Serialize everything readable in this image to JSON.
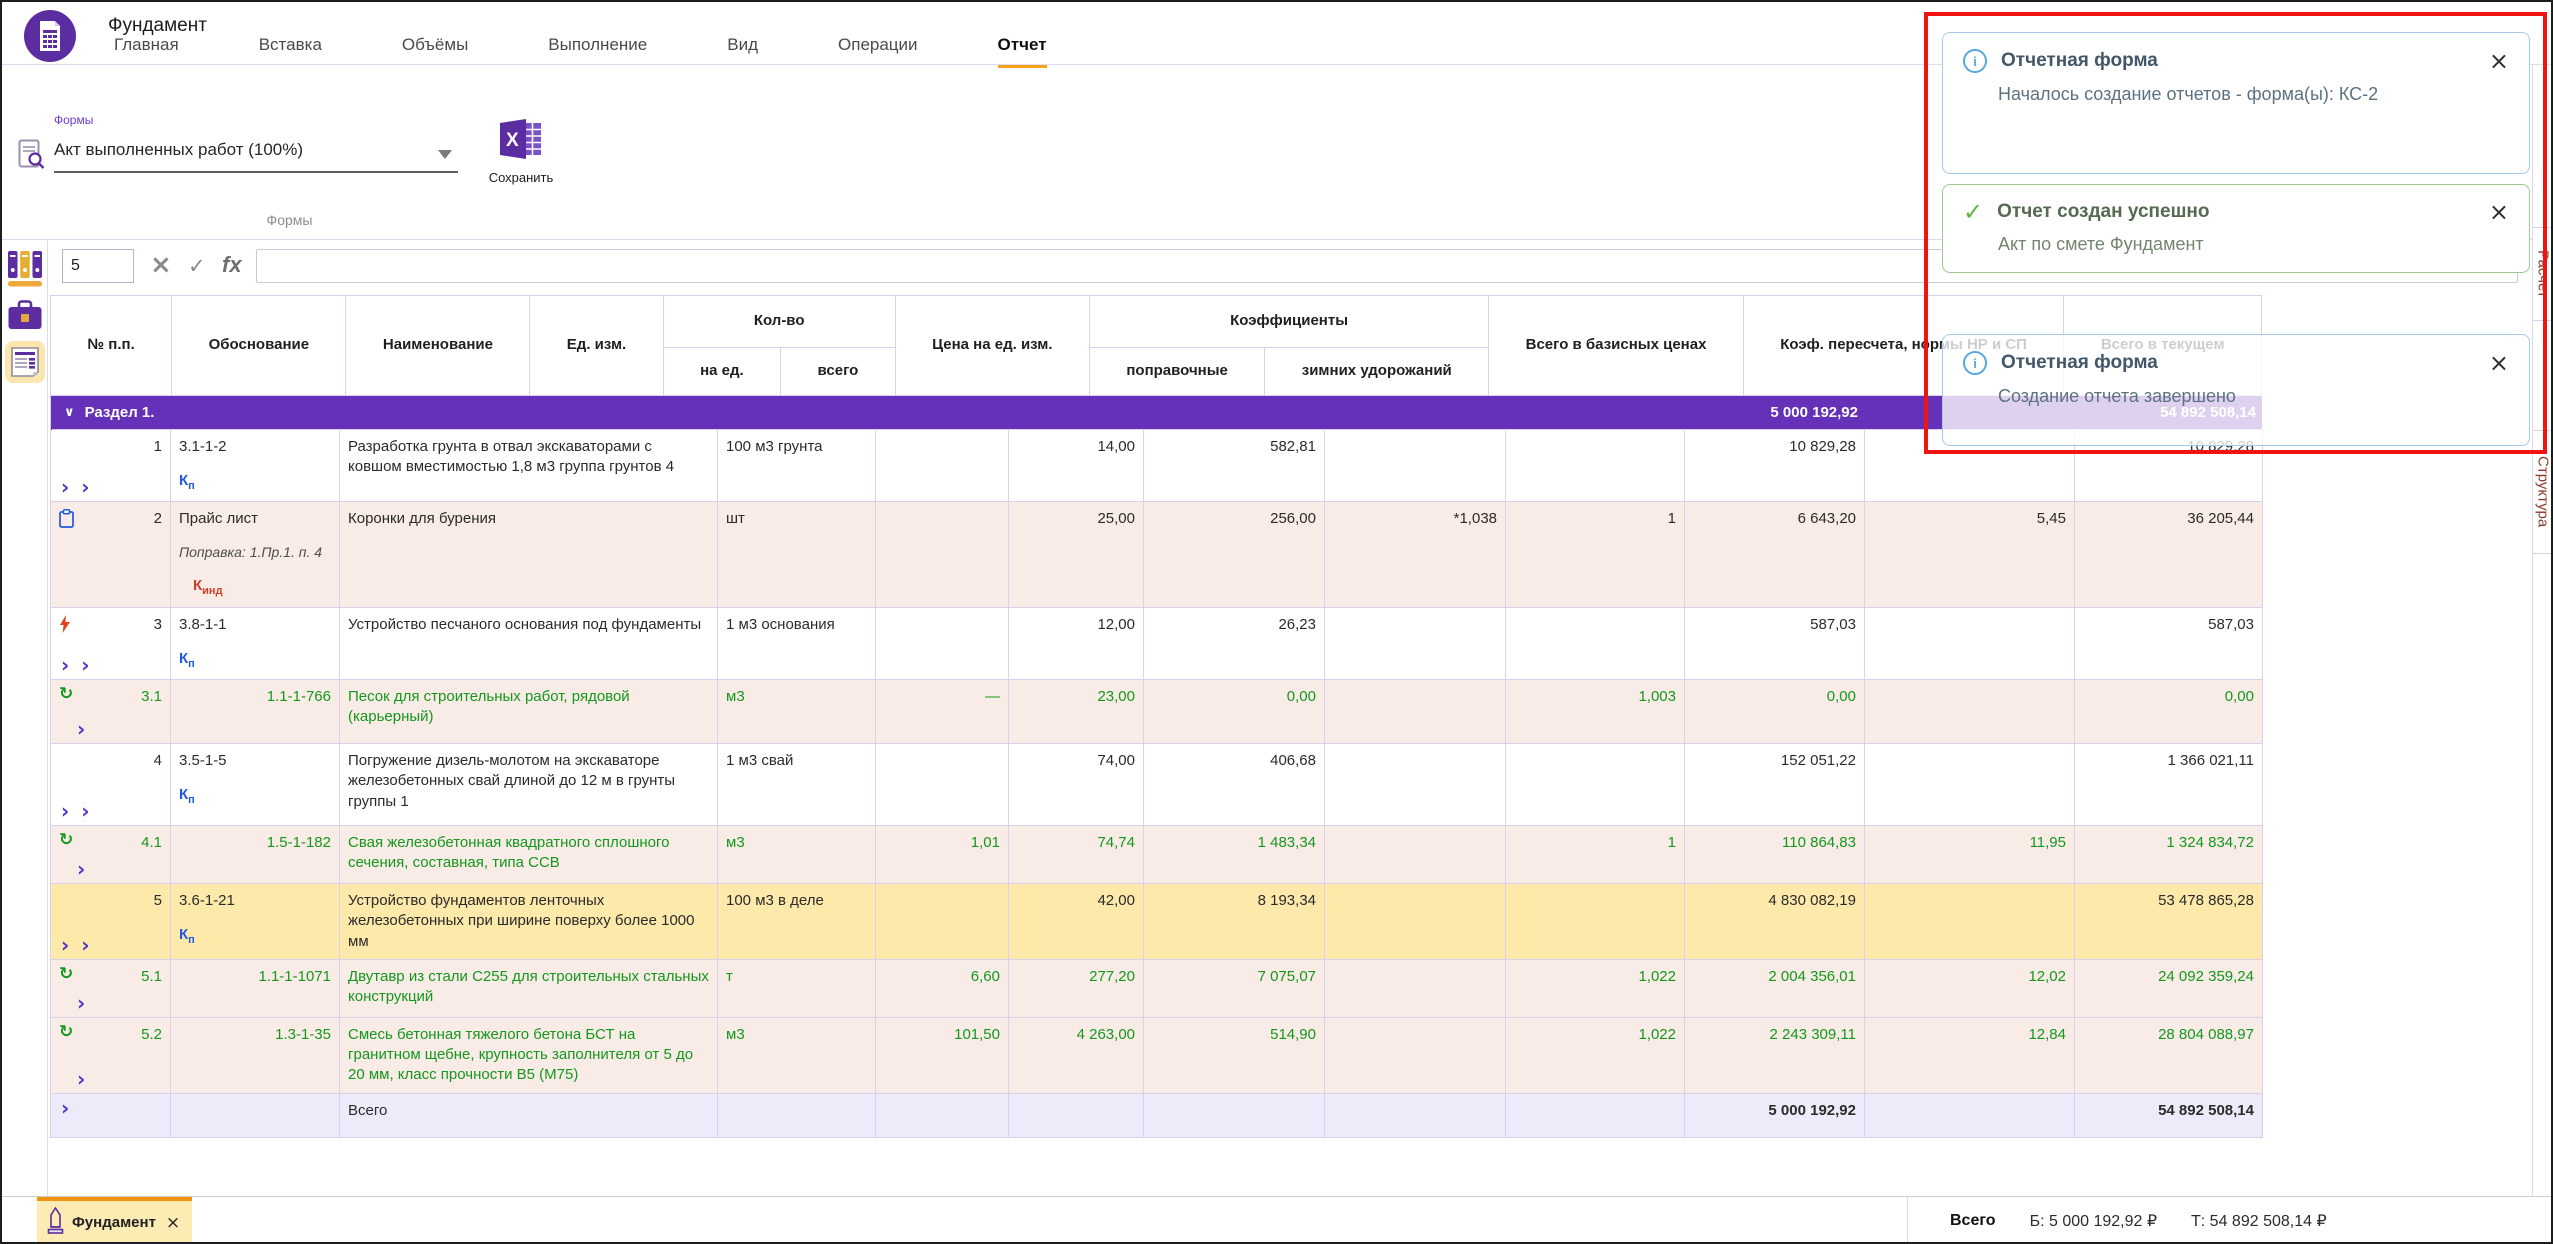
{
  "palette": {
    "accent_purple": "#5b2da0",
    "section_purple": "#6431b8",
    "active_tab_orange": "#f7a21b",
    "row_pink": "#f9ebe6",
    "row_selected_yellow": "#fde9a9",
    "totals_lavender": "#edebfa",
    "grid_border": "#d8d0ec",
    "material_green": "#13981d",
    "coef_blue": "#2257e6",
    "coef_red": "#cf3f2a",
    "annotation_red": "#ef1412",
    "info_blue": "#57a8de",
    "success_green": "#5cb449"
  },
  "icons": {
    "close": "×",
    "check": "✓",
    "chevron": "›",
    "section_chevron": "∨",
    "recycle": "↻",
    "dash": "—",
    "info": "i"
  },
  "window": {
    "title": "Фундамент"
  },
  "nav_tabs": [
    {
      "label": "Главная",
      "active": false
    },
    {
      "label": "Вставка",
      "active": false
    },
    {
      "label": "Объёмы",
      "active": false
    },
    {
      "label": "Выполнение",
      "active": false
    },
    {
      "label": "Вид",
      "active": false
    },
    {
      "label": "Операции",
      "active": false
    },
    {
      "label": "Отчет",
      "active": true
    }
  ],
  "ribbon": {
    "field_label": "Формы",
    "field_value": "Акт выполненных работ (100%)",
    "save_label": "Сохранить",
    "group_label": "Формы"
  },
  "formula_bar": {
    "row_number": "5",
    "fx_label": "fx"
  },
  "side_panel": {
    "tabs": [
      "Расчет",
      "Структура"
    ]
  },
  "table": {
    "headers": {
      "num": "№ п.п.",
      "basis": "Обоснование",
      "name": "Наименование",
      "unit": "Ед. изм.",
      "qty_group": "Кол-во",
      "qty_unit": "на ед.",
      "qty_total": "всего",
      "price": "Цена на ед. изм.",
      "coef_group": "Коэффициенты",
      "coef_adj": "поправочные",
      "coef_wint": "зимних удорожаний",
      "total_base": "Всего в базисных ценах",
      "coef_recalc": "Коэф. пересчета, нормы НР и СП",
      "total_cur": "Всего в текущем"
    },
    "section": {
      "label": "Раздел 1.",
      "total_base": "5 000 192,92",
      "total_cur": "54 892 508,14"
    },
    "rows": [
      {
        "num": "1",
        "basis": "3.1-1-2",
        "coef": "Кп",
        "name": "Разработка грунта в отвал экскаваторами с ковшом вместимостью 1,8 м3 группа грунтов 4",
        "unit": "100 м3 грунта",
        "qty_unit": "",
        "qty_total": "14,00",
        "price": "582,81",
        "coef_adj": "",
        "coef_wint": "",
        "total_base": "10 829,28",
        "coef_recalc": "",
        "total_cur": "10 829,28",
        "style": "work",
        "icon": "",
        "chevrons": 2,
        "highlighted": false
      },
      {
        "num": "2",
        "basis": "Прайс лист",
        "basis_note": "Поправка: 1.Пр.1. п. 4",
        "coef": "Кинд",
        "name": "Коронки для бурения",
        "unit": "шт",
        "qty_unit": "",
        "qty_total": "25,00",
        "price": "256,00",
        "coef_adj": "*1,038",
        "coef_wint": "1",
        "total_base": "6 643,20",
        "coef_recalc": "5,45",
        "total_cur": "36 205,44",
        "style": "price",
        "icon": "clipboard-icon",
        "chevrons": 0,
        "highlighted": false
      },
      {
        "num": "3",
        "basis": "3.8-1-1",
        "coef": "Кп",
        "name": "Устройство песчаного основания под фундаменты",
        "unit": "1 м3 основания",
        "qty_unit": "",
        "qty_total": "12,00",
        "price": "26,23",
        "coef_adj": "",
        "coef_wint": "",
        "total_base": "587,03",
        "coef_recalc": "",
        "total_cur": "587,03",
        "style": "work",
        "icon": "lightning-icon",
        "chevrons": 2,
        "highlighted": false
      },
      {
        "num": "3.1",
        "basis": "1.1-1-766",
        "coef": "",
        "name": "Песок для строительных работ, рядовой (карьерный)",
        "unit": "м3",
        "qty_unit": "—",
        "qty_total": "23,00",
        "price": "0,00",
        "coef_adj": "",
        "coef_wint": "1,003",
        "total_base": "0,00",
        "coef_recalc": "",
        "total_cur": "0,00",
        "style": "material",
        "icon": "recycle-icon",
        "chevrons": 1,
        "highlighted": false
      },
      {
        "num": "4",
        "basis": "3.5-1-5",
        "coef": "Кп",
        "name": "Погружение дизель-молотом на экскаваторе железобетонных свай длиной до 12 м в грунты группы 1",
        "unit": "1 м3 свай",
        "qty_unit": "",
        "qty_total": "74,00",
        "price": "406,68",
        "coef_adj": "",
        "coef_wint": "",
        "total_base": "152 051,22",
        "coef_recalc": "",
        "total_cur": "1 366 021,11",
        "style": "work",
        "icon": "",
        "chevrons": 2,
        "highlighted": false
      },
      {
        "num": "4.1",
        "basis": "1.5-1-182",
        "coef": "",
        "name": "Свая железобетонная квадратного сплошного сечения, составная, типа ССВ",
        "unit": "м3",
        "qty_unit": "1,01",
        "qty_total": "74,74",
        "price": "1 483,34",
        "coef_adj": "",
        "coef_wint": "1",
        "total_base": "110 864,83",
        "coef_recalc": "11,95",
        "total_cur": "1 324 834,72",
        "style": "material",
        "icon": "recycle-icon",
        "chevrons": 1,
        "highlighted": false
      },
      {
        "num": "5",
        "basis": "3.6-1-21",
        "coef": "Кп",
        "name": "Устройство фундаментов ленточных железобетонных при ширине поверху более 1000 мм",
        "unit": "100 м3 в деле",
        "qty_unit": "",
        "qty_total": "42,00",
        "price": "8 193,34",
        "coef_adj": "",
        "coef_wint": "",
        "total_base": "4 830 082,19",
        "coef_recalc": "",
        "total_cur": "53 478 865,28",
        "style": "work",
        "icon": "",
        "chevrons": 2,
        "highlighted": true
      },
      {
        "num": "5.1",
        "basis": "1.1-1-1071",
        "coef": "",
        "name": "Двутавр из стали С255 для строительных стальных конструкций",
        "unit": "т",
        "qty_unit": "6,60",
        "qty_total": "277,20",
        "price": "7 075,07",
        "coef_adj": "",
        "coef_wint": "1,022",
        "total_base": "2 004 356,01",
        "coef_recalc": "12,02",
        "total_cur": "24 092 359,24",
        "style": "material",
        "icon": "recycle-icon",
        "chevrons": 1,
        "highlighted": false
      },
      {
        "num": "5.2",
        "basis": "1.3-1-35",
        "coef": "",
        "name": "Смесь бетонная тяжелого бетона БСТ на гранитном щебне, крупность заполнителя от 5 до 20 мм, класс прочности В5 (М75)",
        "unit": "м3",
        "qty_unit": "101,50",
        "qty_total": "4 263,00",
        "price": "514,90",
        "coef_adj": "",
        "coef_wint": "1,022",
        "total_base": "2 243 309,11",
        "coef_recalc": "12,84",
        "total_cur": "28 804 088,97",
        "style": "material",
        "icon": "recycle-icon",
        "chevrons": 1,
        "highlighted": false
      }
    ],
    "totals": {
      "name": "Всего",
      "total_base": "5 000 192,92",
      "total_cur": "54 892 508,14"
    }
  },
  "notifications": [
    {
      "type": "info",
      "title": "Отчетная форма",
      "message": "Началось создание отчетов - форма(ы): КС-2"
    },
    {
      "type": "success",
      "title": "Отчет создан успешно",
      "message": "Акт по смете Фундамент"
    },
    {
      "type": "info",
      "title": "Отчетная форма",
      "message": "Создание отчета завершено",
      "translucent": true
    }
  ],
  "footer": {
    "tab_label": "Фундамент",
    "totals_label": "Всего",
    "base_total": "Б: 5 000 192,92 ₽",
    "current_total": "Т: 54 892 508,14 ₽"
  }
}
